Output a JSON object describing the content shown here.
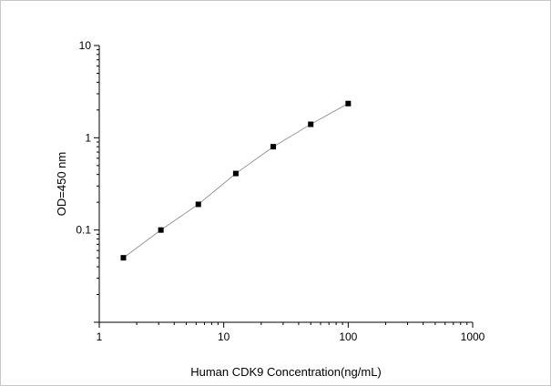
{
  "chart_data": {
    "type": "scatter",
    "title": "",
    "xlabel": "Human CDK9 Concentration(ng/mL)",
    "ylabel": "OD=450 nm",
    "x_scale": "log",
    "y_scale": "log",
    "xlim": [
      1,
      1000
    ],
    "ylim": [
      0.01,
      10
    ],
    "x_ticks": [
      "1",
      "10",
      "100",
      "1000"
    ],
    "y_ticks": [
      "0.1",
      "1",
      "10"
    ],
    "grid": false,
    "legend": "none",
    "fit_line": true,
    "colors": {
      "points": "#000000",
      "line": "#9a9a9a",
      "axis": "#000000"
    },
    "series": [
      {
        "x": [
          1.5625,
          3.125,
          6.25,
          12.5,
          25,
          50,
          100
        ],
        "y": [
          0.05,
          0.1,
          0.19,
          0.41,
          0.8,
          1.4,
          2.35
        ]
      }
    ]
  }
}
